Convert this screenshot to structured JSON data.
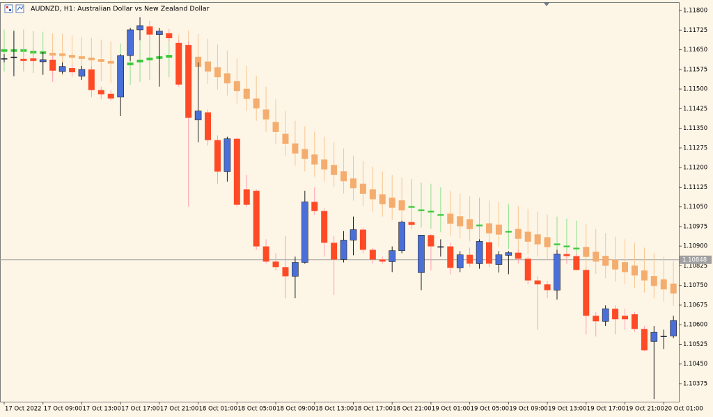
{
  "chart_data": {
    "type": "candlestick",
    "title": "AUDNZD, H1:  Australian Dollar vs New Zealand Dollar",
    "categories": [
      "17 Oct 2022",
      null,
      null,
      null,
      "17 Oct 09:00",
      null,
      null,
      null,
      "17 Oct 13:00",
      null,
      null,
      null,
      "17 Oct 17:00",
      null,
      null,
      null,
      "17 Oct 21:00",
      null,
      null,
      null,
      "18 Oct 01:00",
      null,
      null,
      null,
      "18 Oct 05:00",
      null,
      null,
      null,
      "18 Oct 09:00",
      null,
      null,
      null,
      "18 Oct 13:00",
      null,
      null,
      null,
      "18 Oct 17:00",
      null,
      null,
      null,
      "18 Oct 21:00",
      null,
      null,
      null,
      "19 Oct 01:00",
      null,
      null,
      null,
      "19 Oct 05:00",
      null,
      null,
      null,
      "19 Oct 09:00",
      null,
      null,
      null,
      "19 Oct 13:00",
      null,
      null,
      null,
      "19 Oct 17:00",
      null,
      null,
      null,
      "19 Oct 21:00",
      null,
      null,
      null,
      "20 Oct 01:00",
      null
    ],
    "series": [
      {
        "up_color": "#4a6fd8",
        "down_color": "#ff4a26",
        "doji_color": "#1a1a2e",
        "up_wick": "#1c1c1c",
        "down_wick": "#ff9fb2",
        "open": [
          1.11617,
          1.11623,
          1.11615,
          1.11617,
          1.11604,
          1.11612,
          1.11567,
          1.1158,
          1.11549,
          1.11575,
          1.11496,
          1.11482,
          1.11469,
          1.11628,
          1.11726,
          1.11739,
          1.11708,
          1.11713,
          1.11676,
          1.11668,
          1.11382,
          1.11411,
          1.11305,
          1.11185,
          1.1131,
          1.11117,
          1.11111,
          1.10899,
          1.10841,
          1.1082,
          1.10785,
          1.10838,
          1.11069,
          1.11034,
          1.10913,
          1.10849,
          1.10923,
          1.10963,
          1.10886,
          1.10849,
          1.10841,
          1.10883,
          1.10992,
          1.10799,
          1.10942,
          1.10899,
          1.10899,
          1.10817,
          1.10867,
          1.10833,
          1.10915,
          1.1083,
          1.10865,
          1.10875,
          1.10852,
          1.10769,
          1.10754,
          1.10732,
          1.1087,
          1.10862,
          1.10809,
          1.10634,
          1.10613,
          1.10661,
          1.10634,
          1.1064,
          1.10584,
          1.10536,
          1.10557,
          1.10557
        ],
        "high": [
          1.11633,
          1.11721,
          1.11655,
          1.11655,
          1.11641,
          1.11628,
          1.11602,
          1.11596,
          1.11588,
          1.11588,
          1.11509,
          1.11496,
          1.11633,
          1.11734,
          1.11774,
          1.11761,
          1.11734,
          1.11729,
          1.11686,
          1.11681,
          1.11602,
          1.11421,
          1.11323,
          1.11318,
          1.11315,
          1.11172,
          1.11117,
          1.10926,
          1.10873,
          1.10939,
          1.1086,
          1.11111,
          1.11125,
          1.11045,
          1.10939,
          1.10958,
          1.11013,
          1.10971,
          1.10894,
          1.1086,
          1.10899,
          1.10997,
          1.11005,
          1.10942,
          1.10947,
          1.10926,
          1.10913,
          1.10881,
          1.10894,
          1.10926,
          1.10926,
          1.10881,
          1.10881,
          1.10886,
          1.1086,
          1.10785,
          1.10767,
          1.10886,
          1.10881,
          1.10873,
          1.1082,
          1.10648,
          1.10674,
          1.10674,
          1.10661,
          1.10648,
          1.10595,
          1.10595,
          1.10581,
          1.10634
        ],
        "low": [
          1.11602,
          1.11549,
          1.11575,
          1.11588,
          1.11554,
          1.11527,
          1.11559,
          1.11549,
          1.11535,
          1.11469,
          1.11461,
          1.11456,
          1.11397,
          1.11607,
          1.11686,
          1.11694,
          1.11509,
          1.11681,
          1.11509,
          1.1105,
          1.11297,
          1.11284,
          1.11138,
          1.11146,
          1.1105,
          1.1105,
          1.10886,
          1.10833,
          1.10807,
          1.10701,
          1.10701,
          1.10833,
          1.11019,
          1.1086,
          1.10714,
          1.10838,
          1.10865,
          1.10873,
          1.10833,
          1.10833,
          1.10801,
          1.10873,
          1.10966,
          1.10732,
          1.10807,
          1.1086,
          1.10793,
          1.10801,
          1.1082,
          1.10814,
          1.1082,
          1.10799,
          1.10793,
          1.10833,
          1.10754,
          1.10581,
          1.10701,
          1.10696,
          1.10833,
          1.10807,
          1.10563,
          1.10555,
          1.10595,
          1.10563,
          1.10581,
          1.10573,
          1.10499,
          1.10316,
          1.10507,
          1.10549
        ],
        "close": [
          1.11617,
          1.11623,
          1.11607,
          1.11607,
          1.11612,
          1.1157,
          1.11586,
          1.11564,
          1.11575,
          1.11496,
          1.1148,
          1.11464,
          1.11628,
          1.11726,
          1.11742,
          1.11708,
          1.11721,
          1.11694,
          1.11517,
          1.1139,
          1.11416,
          1.11305,
          1.11185,
          1.1131,
          1.11058,
          1.11058,
          1.10899,
          1.10841,
          1.1082,
          1.10785,
          1.10838,
          1.11069,
          1.11034,
          1.10913,
          1.10849,
          1.10923,
          1.10963,
          1.10886,
          1.10849,
          1.10841,
          1.10883,
          1.10992,
          1.10981,
          1.10942,
          1.10899,
          1.10899,
          1.10817,
          1.10867,
          1.10833,
          1.10918,
          1.10833,
          1.10867,
          1.10875,
          1.10852,
          1.10769,
          1.10754,
          1.10732,
          1.1087,
          1.10862,
          1.10809,
          1.10634,
          1.10613,
          1.10661,
          1.10621,
          1.10621,
          1.10584,
          1.10502,
          1.10571,
          1.10557,
          1.10616
        ]
      },
      {
        "up_color": "#3cc83c",
        "down_color": "#f4ad6e",
        "doji_color": "#f4ad6e",
        "up_wick": "#8ee08e",
        "down_wick": "#f7c690",
        "open": [
          1.11642,
          1.11642,
          1.11642,
          1.11636,
          1.11634,
          1.11638,
          1.11636,
          1.1163,
          1.11625,
          1.1162,
          1.11614,
          1.11607,
          1.11589,
          1.11591,
          1.11602,
          1.1161,
          1.11615,
          1.1162,
          1.11633,
          1.11636,
          1.11623,
          1.11605,
          1.11583,
          1.1156,
          1.1153,
          1.11501,
          1.11464,
          1.11422,
          1.11374,
          1.11329,
          1.11292,
          1.11271,
          1.1125,
          1.11231,
          1.1121,
          1.11186,
          1.11159,
          1.11138,
          1.11117,
          1.11098,
          1.11085,
          1.11075,
          1.11047,
          1.11034,
          1.11029,
          1.11016,
          1.11024,
          1.11014,
          1.11003,
          1.10976,
          1.10987,
          1.10982,
          1.10952,
          1.10966,
          1.10955,
          1.10945,
          1.10934,
          1.10904,
          1.10896,
          1.10888,
          1.10897,
          1.10879,
          1.10863,
          1.10849,
          1.10839,
          1.10826,
          1.10807,
          1.10786,
          1.10773,
          1.10757
        ],
        "high": [
          1.11727,
          1.11727,
          1.11727,
          1.11721,
          1.11719,
          1.11713,
          1.11711,
          1.11705,
          1.117,
          1.11695,
          1.11689,
          1.11682,
          1.11674,
          1.11676,
          1.11687,
          1.11695,
          1.117,
          1.11705,
          1.11708,
          1.11723,
          1.1171,
          1.11692,
          1.1167,
          1.11647,
          1.11617,
          1.11588,
          1.11551,
          1.11509,
          1.11461,
          1.11416,
          1.11379,
          1.11358,
          1.11337,
          1.11318,
          1.11297,
          1.11273,
          1.11246,
          1.11225,
          1.11204,
          1.11185,
          1.11172,
          1.11162,
          1.11156,
          1.11143,
          1.11138,
          1.11125,
          1.11111,
          1.11101,
          1.1109,
          1.11085,
          1.11074,
          1.11069,
          1.11061,
          1.11053,
          1.11042,
          1.11032,
          1.11021,
          1.11013,
          1.11005,
          1.10997,
          1.10984,
          1.10966,
          1.1095,
          1.10936,
          1.10926,
          1.10913,
          1.10894,
          1.10873,
          1.1086,
          1.10844
        ],
        "low": [
          1.11567,
          1.11567,
          1.11567,
          1.11561,
          1.11559,
          1.11553,
          1.11551,
          1.11545,
          1.1154,
          1.11535,
          1.11529,
          1.11522,
          1.11514,
          1.11516,
          1.11527,
          1.11535,
          1.1154,
          1.11545,
          1.11548,
          1.11551,
          1.11538,
          1.1152,
          1.11498,
          1.11475,
          1.11445,
          1.11416,
          1.11379,
          1.11337,
          1.11289,
          1.11244,
          1.11207,
          1.11186,
          1.11165,
          1.11146,
          1.11125,
          1.11101,
          1.11074,
          1.11053,
          1.11032,
          1.11013,
          1.11,
          1.1099,
          1.10984,
          1.10971,
          1.10966,
          1.10953,
          1.10939,
          1.10929,
          1.10918,
          1.10913,
          1.10902,
          1.10897,
          1.10889,
          1.10881,
          1.1087,
          1.1086,
          1.10849,
          1.10841,
          1.10833,
          1.10825,
          1.10812,
          1.10794,
          1.10778,
          1.10764,
          1.10754,
          1.10741,
          1.10722,
          1.10701,
          1.10688,
          1.10672
        ],
        "close": [
          1.11652,
          1.11652,
          1.11652,
          1.11646,
          1.11644,
          1.11628,
          1.11626,
          1.1162,
          1.11615,
          1.1161,
          1.11604,
          1.11597,
          1.11599,
          1.11601,
          1.11612,
          1.1162,
          1.11625,
          1.1163,
          1.11623,
          1.11598,
          1.11585,
          1.11567,
          1.11545,
          1.11522,
          1.11492,
          1.11463,
          1.11426,
          1.11384,
          1.11336,
          1.11291,
          1.11254,
          1.11233,
          1.11212,
          1.11193,
          1.11172,
          1.11148,
          1.11121,
          1.111,
          1.11079,
          1.1106,
          1.11047,
          1.11037,
          1.11053,
          1.1104,
          1.11035,
          1.11022,
          1.10986,
          1.10976,
          1.10965,
          1.10982,
          1.10949,
          1.10944,
          1.10958,
          1.10928,
          1.10917,
          1.10907,
          1.10896,
          1.1091,
          1.10902,
          1.10894,
          1.10859,
          1.10841,
          1.10825,
          1.10811,
          1.10801,
          1.10788,
          1.10769,
          1.10748,
          1.10735,
          1.10719
        ]
      }
    ],
    "hline": 1.10848,
    "hline_color": "#a0a0a0",
    "ylim": [
      1.10306,
      1.11832
    ],
    "yticks": [
      {
        "value": 1.118,
        "label": "1.11800"
      },
      1.11725,
      {
        "value": 1.1165,
        "label": "1.11650"
      },
      1.11575,
      {
        "value": 1.115,
        "label": "1.11500"
      },
      1.11425,
      {
        "value": 1.1135,
        "label": "1.11350"
      },
      1.11275,
      {
        "value": 1.112,
        "label": "1.11200"
      },
      1.11125,
      {
        "value": 1.1105,
        "label": "1.11050"
      },
      1.10975,
      {
        "value": 1.109,
        "label": "1.10900"
      },
      1.10825,
      {
        "value": 1.1075,
        "label": "1.10750"
      },
      1.10675,
      {
        "value": 1.106,
        "label": "1.10600"
      },
      1.10525,
      {
        "value": 1.1045,
        "label": "1.10450"
      },
      1.10375
    ]
  }
}
